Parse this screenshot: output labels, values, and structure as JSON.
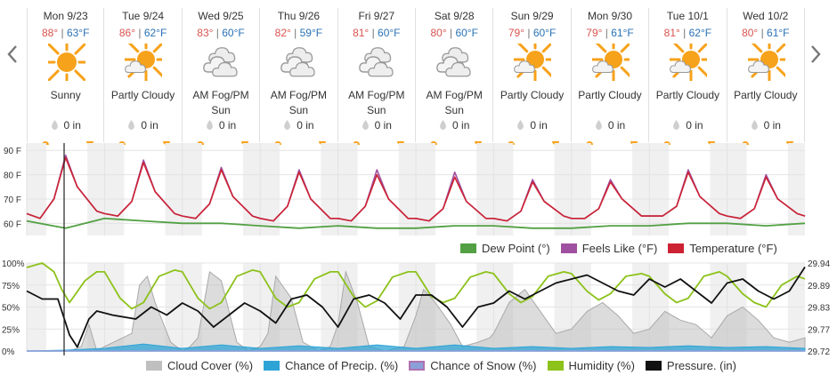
{
  "nav": {
    "prev_icon": "chevron-left-icon",
    "next_icon": "chevron-right-icon"
  },
  "days": [
    {
      "name": "Mon 9/23",
      "hi": "88°",
      "lo": "63°F",
      "icon": "sunny-icon",
      "cond1": "Sunny",
      "cond2": "",
      "precip": "0 in"
    },
    {
      "name": "Tue 9/24",
      "hi": "86°",
      "lo": "62°F",
      "icon": "partly-cloudy-icon",
      "cond1": "Partly Cloudy",
      "cond2": "",
      "precip": "0 in"
    },
    {
      "name": "Wed 9/25",
      "hi": "83°",
      "lo": "60°F",
      "icon": "cloudy-icon",
      "cond1": "AM Fog/PM",
      "cond2": "Sun",
      "precip": "0 in"
    },
    {
      "name": "Thu 9/26",
      "hi": "82°",
      "lo": "59°F",
      "icon": "cloudy-icon",
      "cond1": "AM Fog/PM",
      "cond2": "Sun",
      "precip": "0 in"
    },
    {
      "name": "Fri 9/27",
      "hi": "81°",
      "lo": "60°F",
      "icon": "cloudy-icon",
      "cond1": "AM Fog/PM",
      "cond2": "Sun",
      "precip": "0 in"
    },
    {
      "name": "Sat 9/28",
      "hi": "80°",
      "lo": "60°F",
      "icon": "cloudy-icon",
      "cond1": "AM Fog/PM",
      "cond2": "Sun",
      "precip": "0 in"
    },
    {
      "name": "Sun 9/29",
      "hi": "79°",
      "lo": "60°F",
      "icon": "partly-cloudy-icon",
      "cond1": "Partly Cloudy",
      "cond2": "",
      "precip": "0 in"
    },
    {
      "name": "Mon 9/30",
      "hi": "79°",
      "lo": "61°F",
      "icon": "partly-cloudy-icon",
      "cond1": "Partly Cloudy",
      "cond2": "",
      "precip": "0 in"
    },
    {
      "name": "Tue 10/1",
      "hi": "81°",
      "lo": "62°F",
      "icon": "partly-cloudy-icon",
      "cond1": "Partly Cloudy",
      "cond2": "",
      "precip": "0 in"
    },
    {
      "name": "Wed 10/2",
      "hi": "80°",
      "lo": "61°F",
      "icon": "partly-cloudy-icon",
      "cond1": "Partly Cloudy",
      "cond2": "",
      "precip": "0 in"
    }
  ],
  "colors": {
    "temperature": "#cc2233",
    "feels_like": "#a050a0",
    "dew_point": "#52a043",
    "cloud_cover": "#bfbfbf",
    "chance_precip": "#2ea4d6",
    "chance_snow": "#8aa0d8",
    "humidity": "#8cc21a",
    "pressure": "#111111",
    "hi_temp": "#d9534f",
    "lo_temp": "#2a72b5",
    "sun": "#f7a21b"
  },
  "chart_data": [
    {
      "type": "line",
      "yticks": [
        "90 F",
        "80 F",
        "70 F",
        "60 F"
      ],
      "ylim": [
        55,
        93
      ],
      "x_unit": "day index (0 = Mon 9/23)",
      "grid": true,
      "legend_position": "bottom-right",
      "series": [
        {
          "name": "Dew Point (°)",
          "color_key": "dew_point",
          "x": [
            0,
            0.5,
            1,
            1.5,
            2,
            2.5,
            3,
            3.5,
            4,
            4.5,
            5,
            5.5,
            6,
            6.5,
            7,
            7.5,
            8,
            8.5,
            9,
            9.5,
            10
          ],
          "y": [
            61,
            58,
            62,
            61,
            60,
            60,
            59,
            58,
            59,
            58,
            58,
            59,
            59,
            58,
            58,
            59,
            59,
            60,
            60,
            59,
            60
          ]
        },
        {
          "name": "Feels Like (°F)",
          "color_key": "feels_like",
          "x": [
            0,
            0.17,
            0.35,
            0.5,
            0.65,
            0.9,
            1,
            1.17,
            1.35,
            1.5,
            1.65,
            1.9,
            2,
            2.17,
            2.35,
            2.5,
            2.65,
            2.9,
            3,
            3.17,
            3.35,
            3.5,
            3.65,
            3.9,
            4,
            4.17,
            4.35,
            4.5,
            4.65,
            4.9,
            5,
            5.17,
            5.35,
            5.5,
            5.65,
            5.9,
            6,
            6.17,
            6.35,
            6.5,
            6.65,
            6.9,
            7,
            7.17,
            7.35,
            7.5,
            7.65,
            7.9,
            8,
            8.17,
            8.35,
            8.5,
            8.65,
            8.9,
            9,
            9.17,
            9.35,
            9.5,
            9.65,
            9.9,
            10
          ],
          "y": [
            64,
            62,
            70,
            88,
            75,
            65,
            64,
            63,
            69,
            86,
            73,
            64,
            63,
            62,
            68,
            83,
            71,
            63,
            62,
            61,
            67,
            82,
            70,
            62,
            62,
            61,
            67,
            82,
            70,
            62,
            62,
            61,
            66,
            81,
            69,
            62,
            62,
            61,
            65,
            78,
            69,
            63,
            62,
            62,
            66,
            78,
            70,
            63,
            63,
            63,
            67,
            82,
            71,
            64,
            63,
            62,
            66,
            80,
            70,
            64,
            63
          ]
        },
        {
          "name": "Temperature (°F)",
          "color_key": "temperature",
          "x": [
            0,
            0.17,
            0.35,
            0.5,
            0.65,
            0.9,
            1,
            1.17,
            1.35,
            1.5,
            1.65,
            1.9,
            2,
            2.17,
            2.35,
            2.5,
            2.65,
            2.9,
            3,
            3.17,
            3.35,
            3.5,
            3.65,
            3.9,
            4,
            4.17,
            4.35,
            4.5,
            4.65,
            4.9,
            5,
            5.17,
            5.35,
            5.5,
            5.65,
            5.9,
            6,
            6.17,
            6.35,
            6.5,
            6.65,
            6.9,
            7,
            7.17,
            7.35,
            7.5,
            7.65,
            7.9,
            8,
            8.17,
            8.35,
            8.5,
            8.65,
            8.9,
            9,
            9.17,
            9.35,
            9.5,
            9.65,
            9.9,
            10
          ],
          "y": [
            64,
            62,
            70,
            87,
            75,
            65,
            64,
            63,
            69,
            85,
            73,
            64,
            63,
            62,
            68,
            82,
            71,
            63,
            62,
            61,
            67,
            81,
            70,
            62,
            62,
            61,
            67,
            80,
            70,
            62,
            62,
            61,
            66,
            79,
            69,
            62,
            62,
            61,
            65,
            77,
            69,
            63,
            62,
            62,
            66,
            77,
            70,
            63,
            63,
            63,
            67,
            81,
            71,
            64,
            63,
            62,
            66,
            79,
            70,
            64,
            63
          ]
        }
      ]
    },
    {
      "type": "line",
      "left_ticks": [
        "100%",
        "75%",
        "50%",
        "25%",
        "0%"
      ],
      "right_ticks": [
        "29.94",
        "29.89",
        "29.83",
        "29.77",
        "29.72"
      ],
      "ylim_percent": [
        0,
        100
      ],
      "ylim_pressure": [
        29.72,
        29.94
      ],
      "legend_position": "bottom-right",
      "series": [
        {
          "name": "Cloud Cover (%)",
          "color_key": "cloud_cover",
          "kind": "area",
          "x": [
            0,
            0.4,
            0.55,
            0.7,
            0.8,
            0.9,
            1,
            1.35,
            1.45,
            1.55,
            1.65,
            1.85,
            2,
            2.1,
            2.2,
            2.35,
            2.5,
            2.7,
            2.85,
            3,
            3.1,
            3.2,
            3.4,
            3.55,
            3.75,
            3.9,
            4,
            4.1,
            4.25,
            4.4,
            4.6,
            4.85,
            5,
            5.1,
            5.25,
            5.45,
            5.6,
            5.8,
            5.95,
            6,
            6.2,
            6.4,
            6.6,
            6.8,
            7,
            7.2,
            7.4,
            7.6,
            7.8,
            8,
            8.2,
            8.4,
            8.6,
            8.8,
            9,
            9.2,
            9.4,
            9.6,
            9.8,
            10
          ],
          "y": [
            0,
            0,
            0,
            5,
            30,
            0,
            5,
            20,
            75,
            85,
            55,
            10,
            0,
            5,
            15,
            90,
            80,
            10,
            0,
            5,
            20,
            85,
            60,
            10,
            0,
            5,
            30,
            90,
            55,
            5,
            0,
            5,
            40,
            70,
            55,
            30,
            5,
            10,
            15,
            20,
            55,
            70,
            45,
            20,
            25,
            45,
            55,
            40,
            20,
            25,
            45,
            35,
            30,
            15,
            40,
            50,
            35,
            15,
            10,
            15
          ]
        },
        {
          "name": "Chance of Precip. (%)",
          "color_key": "chance_precip",
          "kind": "area",
          "x": [
            0,
            0.5,
            1,
            1.5,
            2,
            2.5,
            3,
            3.5,
            4,
            4.5,
            5,
            5.5,
            6,
            6.5,
            7,
            7.5,
            8,
            8.5,
            9,
            9.5,
            10
          ],
          "y": [
            0,
            1,
            3,
            8,
            3,
            7,
            3,
            6,
            3,
            7,
            3,
            7,
            3,
            5,
            3,
            5,
            4,
            6,
            4,
            5,
            3
          ]
        },
        {
          "name": "Chance of Snow (%)",
          "color_key": "chance_snow",
          "kind": "line",
          "x": [
            0,
            10
          ],
          "y": [
            0,
            0
          ]
        },
        {
          "name": "Humidity (%)",
          "color_key": "humidity",
          "kind": "line",
          "x": [
            0,
            0.2,
            0.35,
            0.45,
            0.55,
            0.75,
            0.9,
            1,
            1.2,
            1.35,
            1.5,
            1.7,
            1.9,
            2,
            2.2,
            2.35,
            2.5,
            2.7,
            2.9,
            3,
            3.2,
            3.35,
            3.5,
            3.7,
            3.9,
            4,
            4.2,
            4.35,
            4.5,
            4.7,
            4.9,
            5,
            5.2,
            5.35,
            5.5,
            5.7,
            5.9,
            6,
            6.2,
            6.35,
            6.5,
            6.7,
            6.9,
            7,
            7.2,
            7.35,
            7.5,
            7.7,
            7.9,
            8,
            8.2,
            8.35,
            8.5,
            8.7,
            8.9,
            9,
            9.2,
            9.35,
            9.5,
            9.7,
            9.9,
            10
          ],
          "y": [
            95,
            100,
            90,
            70,
            55,
            80,
            90,
            90,
            60,
            48,
            55,
            85,
            92,
            90,
            60,
            48,
            55,
            85,
            92,
            90,
            60,
            50,
            55,
            82,
            90,
            90,
            62,
            50,
            57,
            84,
            90,
            90,
            62,
            55,
            60,
            84,
            90,
            88,
            65,
            55,
            62,
            85,
            90,
            88,
            68,
            58,
            65,
            85,
            88,
            85,
            65,
            55,
            60,
            85,
            90,
            85,
            65,
            55,
            50,
            75,
            85,
            82
          ]
        },
        {
          "name": "Pressure. (in)",
          "color_key": "pressure",
          "kind": "line",
          "axis": "right",
          "x": [
            0,
            0.2,
            0.4,
            0.55,
            0.65,
            0.8,
            0.9,
            1.1,
            1.4,
            1.6,
            1.8,
            2,
            2.2,
            2.4,
            2.6,
            2.8,
            3,
            3.2,
            3.4,
            3.6,
            3.8,
            4,
            4.2,
            4.4,
            4.6,
            4.8,
            5,
            5.2,
            5.4,
            5.6,
            5.8,
            6,
            6.2,
            6.4,
            6.6,
            6.8,
            7,
            7.2,
            7.4,
            7.6,
            7.8,
            8,
            8.2,
            8.4,
            8.6,
            8.8,
            9,
            9.2,
            9.4,
            9.6,
            9.8,
            10
          ],
          "y": [
            29.87,
            29.85,
            29.85,
            29.76,
            29.73,
            29.8,
            29.82,
            29.81,
            29.8,
            29.83,
            29.81,
            29.84,
            29.82,
            29.78,
            29.81,
            29.84,
            29.82,
            29.79,
            29.85,
            29.86,
            29.83,
            29.78,
            29.85,
            29.86,
            29.84,
            29.8,
            29.86,
            29.86,
            29.83,
            29.78,
            29.83,
            29.84,
            29.87,
            29.85,
            29.87,
            29.89,
            29.9,
            29.91,
            29.89,
            29.87,
            29.86,
            29.9,
            29.88,
            29.9,
            29.87,
            29.84,
            29.89,
            29.9,
            29.87,
            29.85,
            29.87,
            29.93
          ]
        }
      ]
    }
  ]
}
